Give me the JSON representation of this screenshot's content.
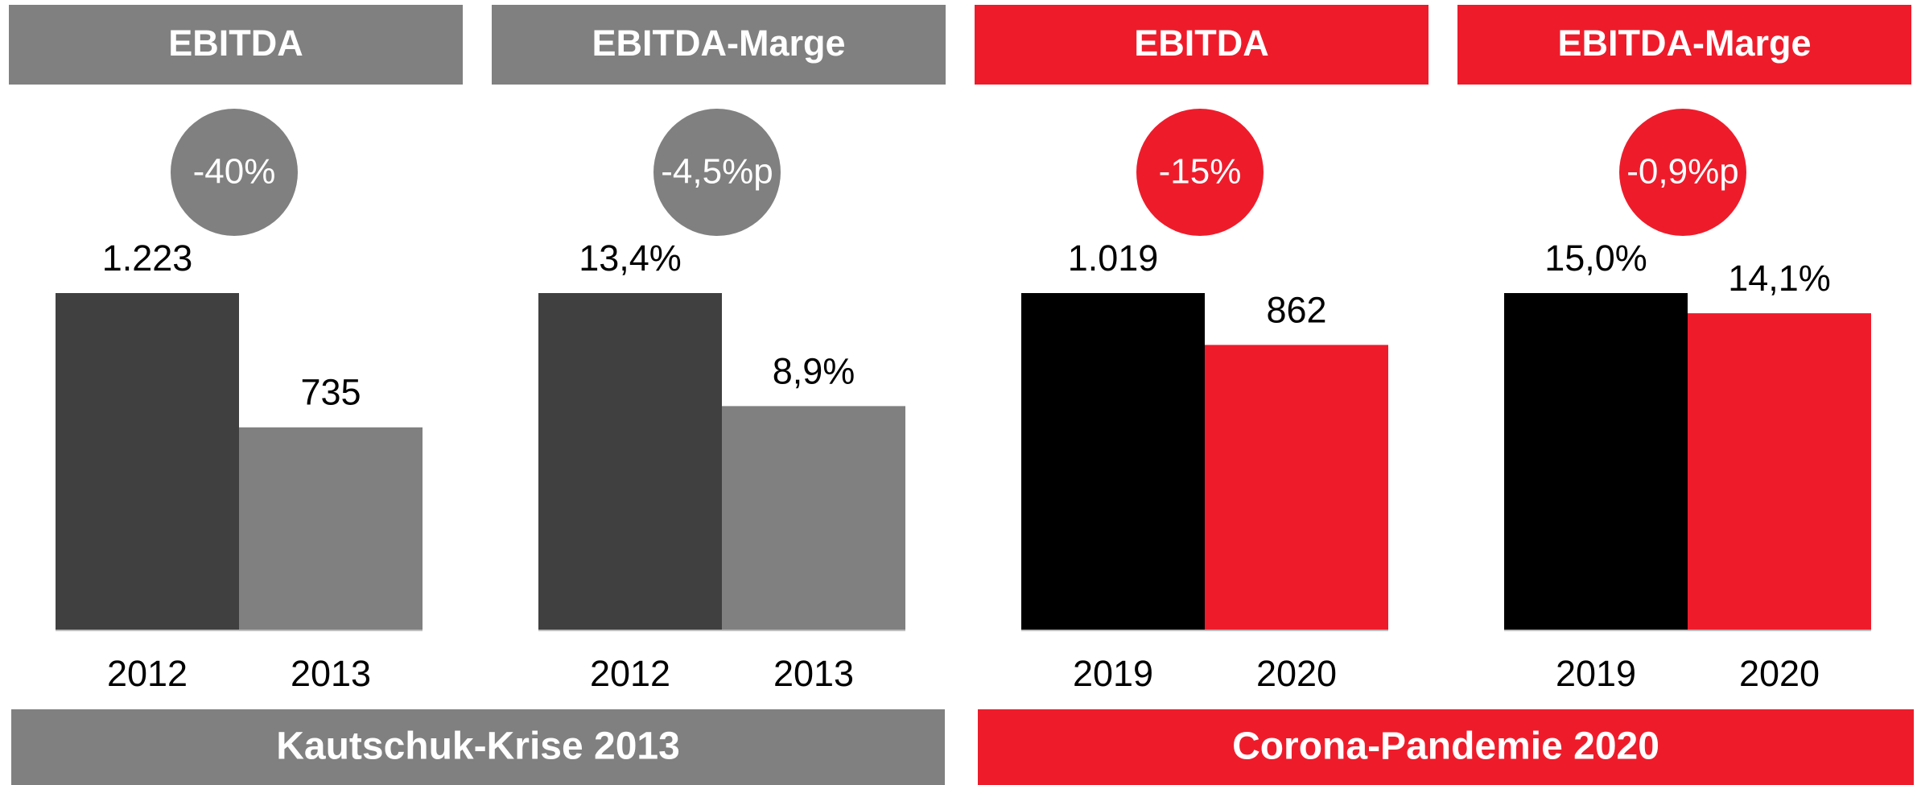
{
  "chart_data": [
    {
      "type": "bar",
      "title": "EBITDA",
      "annotation": "-40%",
      "header_color": "#808080",
      "annotation_color": "#808080",
      "categories": [
        "2012",
        "2013"
      ],
      "values": [
        1223,
        735
      ],
      "value_labels": [
        "1.223",
        "735"
      ],
      "colors": [
        "#404040",
        "#808080"
      ]
    },
    {
      "type": "bar",
      "title": "EBITDA-Marge",
      "annotation": "-4,5%p",
      "header_color": "#808080",
      "annotation_color": "#808080",
      "categories": [
        "2012",
        "2013"
      ],
      "values": [
        13.4,
        8.9
      ],
      "value_labels": [
        "13,4%",
        "8,9%"
      ],
      "colors": [
        "#404040",
        "#808080"
      ]
    },
    {
      "type": "bar",
      "title": "EBITDA",
      "annotation": "-15%",
      "header_color": "#ee1c2b",
      "annotation_color": "#ee1c2b",
      "categories": [
        "2019",
        "2020"
      ],
      "values": [
        1019,
        862
      ],
      "value_labels": [
        "1.019",
        "862"
      ],
      "colors": [
        "#000000",
        "#ee1c2b"
      ]
    },
    {
      "type": "bar",
      "title": "EBITDA-Marge",
      "annotation": "-0,9%p",
      "header_color": "#ee1c2b",
      "annotation_color": "#ee1c2b",
      "categories": [
        "2019",
        "2020"
      ],
      "values": [
        15.0,
        14.1
      ],
      "value_labels": [
        "15,0%",
        "14,1%"
      ],
      "colors": [
        "#000000",
        "#ee1c2b"
      ]
    }
  ],
  "footers": [
    {
      "text": "Kautschuk-Krise 2013",
      "color": "#808080"
    },
    {
      "text": "Corona-Pandemie 2020",
      "color": "#ee1c2b"
    }
  ]
}
